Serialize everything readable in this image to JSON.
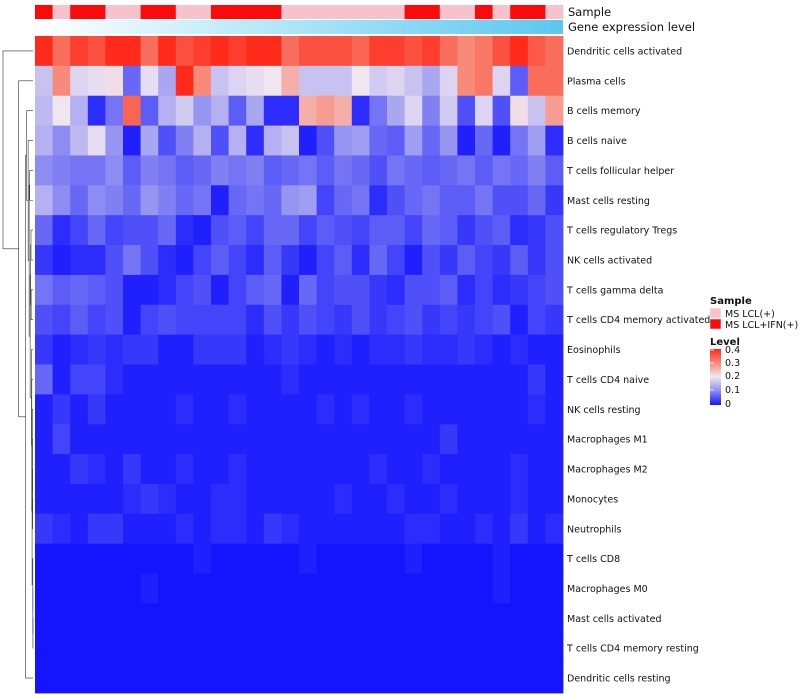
{
  "chart_data": {
    "type": "heatmap",
    "title": "",
    "annotations": [
      {
        "name": "Sample"
      },
      {
        "name": "Gene expression level"
      }
    ],
    "row_labels": [
      "Dendritic cells activated",
      "Plasma cells",
      "B cells memory",
      "B cells naive",
      "T cells follicular helper",
      "Mast cells resting",
      "T cells regulatory  Tregs",
      "NK cells activated",
      "T cells gamma delta",
      "T cells CD4 memory activated",
      "Eosinophils",
      "T cells CD4 naive",
      "NK cells resting",
      "Macrophages M1",
      "Macrophages M2",
      "Monocytes",
      "Neutrophils",
      "T cells CD8",
      "Macrophages M0",
      "Mast cells activated",
      "T cells CD4 memory resting",
      "Dendritic cells resting"
    ],
    "sample_groups": [
      1,
      0,
      1,
      1,
      0,
      0,
      1,
      1,
      0,
      0,
      1,
      1,
      1,
      1,
      0,
      0,
      0,
      0,
      0,
      0,
      0,
      1,
      1,
      0,
      0,
      1,
      0,
      1,
      1,
      0
    ],
    "expression_gradient": [
      "#ffffff",
      "#5bc8ef"
    ],
    "color_scale": {
      "breaks": [
        0,
        0.1,
        0.2,
        0.3,
        0.4
      ],
      "colors": [
        "#1414ff",
        "#8c8cf2",
        "#f0e6f0",
        "#f78a78",
        "#ff2a1a"
      ]
    },
    "values": [
      [
        0.4,
        0.33,
        0.38,
        0.36,
        0.4,
        0.4,
        0.33,
        0.4,
        0.36,
        0.38,
        0.4,
        0.38,
        0.4,
        0.4,
        0.33,
        0.36,
        0.36,
        0.36,
        0.34,
        0.38,
        0.38,
        0.36,
        0.38,
        0.33,
        0.3,
        0.32,
        0.36,
        0.4,
        0.35,
        0.33
      ],
      [
        0.16,
        0.3,
        0.18,
        0.19,
        0.21,
        0.07,
        0.19,
        0.13,
        0.4,
        0.3,
        0.16,
        0.18,
        0.19,
        0.2,
        0.26,
        0.16,
        0.16,
        0.16,
        0.2,
        0.17,
        0.18,
        0.16,
        0.13,
        0.18,
        0.3,
        0.32,
        0.18,
        0.06,
        0.33,
        0.33
      ],
      [
        0.15,
        0.2,
        0.14,
        0.02,
        0.08,
        0.34,
        0.06,
        0.14,
        0.17,
        0.11,
        0.14,
        0.06,
        0.13,
        0.02,
        0.02,
        0.26,
        0.28,
        0.26,
        0.02,
        0.08,
        0.13,
        0.18,
        0.09,
        0.17,
        0.05,
        0.18,
        0.05,
        0.21,
        0.16,
        0.28
      ],
      [
        0.14,
        0.1,
        0.15,
        0.19,
        0.11,
        0.01,
        0.13,
        0.05,
        0.09,
        0.14,
        0.05,
        0.14,
        0.02,
        0.14,
        0.16,
        0.01,
        0.05,
        0.11,
        0.12,
        0.07,
        0.06,
        0.12,
        0.07,
        0.11,
        0.01,
        0.07,
        0.01,
        0.08,
        0.12,
        0.02
      ],
      [
        0.1,
        0.09,
        0.08,
        0.08,
        0.1,
        0.06,
        0.09,
        0.08,
        0.06,
        0.07,
        0.09,
        0.08,
        0.09,
        0.06,
        0.07,
        0.08,
        0.06,
        0.08,
        0.07,
        0.05,
        0.08,
        0.07,
        0.06,
        0.07,
        0.08,
        0.06,
        0.08,
        0.07,
        0.09,
        0.06
      ],
      [
        0.14,
        0.1,
        0.07,
        0.1,
        0.09,
        0.07,
        0.11,
        0.09,
        0.07,
        0.08,
        0.01,
        0.07,
        0.08,
        0.07,
        0.11,
        0.12,
        0.04,
        0.07,
        0.08,
        0.02,
        0.05,
        0.07,
        0.08,
        0.06,
        0.06,
        0.08,
        0.05,
        0.05,
        0.07,
        0.03
      ],
      [
        0.07,
        0.02,
        0.04,
        0.07,
        0.04,
        0.05,
        0.05,
        0.07,
        0.02,
        0.01,
        0.05,
        0.06,
        0.04,
        0.07,
        0.07,
        0.04,
        0.06,
        0.05,
        0.04,
        0.06,
        0.06,
        0.04,
        0.07,
        0.06,
        0.03,
        0.05,
        0.06,
        0.02,
        0.03,
        0.05
      ],
      [
        0.03,
        0.01,
        0.02,
        0.02,
        0.05,
        0.08,
        0.05,
        0.02,
        0.01,
        0.04,
        0.06,
        0.04,
        0.02,
        0.06,
        0.03,
        0.01,
        0.04,
        0.06,
        0.02,
        0.07,
        0.04,
        0.01,
        0.05,
        0.03,
        0.06,
        0.04,
        0.03,
        0.06,
        0.03,
        0.05
      ],
      [
        0.08,
        0.06,
        0.07,
        0.06,
        0.05,
        0.01,
        0.01,
        0.02,
        0.04,
        0.05,
        0.01,
        0.04,
        0.06,
        0.07,
        0.01,
        0.07,
        0.04,
        0.05,
        0.05,
        0.03,
        0.02,
        0.05,
        0.05,
        0.06,
        0.02,
        0.04,
        0.02,
        0.03,
        0.04,
        0.05
      ],
      [
        0.05,
        0.04,
        0.06,
        0.04,
        0.05,
        0.01,
        0.04,
        0.05,
        0.04,
        0.04,
        0.04,
        0.04,
        0.02,
        0.05,
        0.03,
        0.05,
        0.04,
        0.03,
        0.05,
        0.03,
        0.04,
        0.05,
        0.03,
        0.04,
        0.03,
        0.04,
        0.05,
        0.01,
        0.04,
        0.03
      ],
      [
        0.03,
        0.01,
        0.02,
        0.03,
        0.02,
        0.03,
        0.03,
        0.01,
        0.01,
        0.03,
        0.03,
        0.03,
        0.01,
        0.02,
        0.03,
        0.02,
        0.01,
        0.02,
        0.01,
        0.02,
        0.02,
        0.03,
        0.02,
        0.02,
        0.03,
        0.02,
        0.01,
        0.02,
        0.01,
        0.01
      ],
      [
        0.07,
        0.01,
        0.04,
        0.04,
        0.02,
        0.01,
        0.01,
        0.01,
        0.01,
        0.01,
        0.01,
        0.01,
        0.01,
        0.01,
        0.02,
        0.01,
        0.01,
        0.01,
        0.01,
        0.01,
        0.01,
        0.01,
        0.01,
        0.01,
        0.01,
        0.01,
        0.01,
        0.01,
        0.03,
        0.01
      ],
      [
        0.01,
        0.03,
        0.01,
        0.03,
        0.01,
        0.01,
        0.01,
        0.01,
        0.02,
        0.01,
        0.01,
        0.02,
        0.01,
        0.01,
        0.01,
        0.01,
        0.02,
        0.01,
        0.02,
        0.01,
        0.01,
        0.02,
        0.01,
        0.01,
        0.01,
        0.01,
        0.01,
        0.01,
        0.02,
        0.01
      ],
      [
        0.01,
        0.04,
        0.01,
        0.01,
        0.01,
        0.01,
        0.01,
        0.01,
        0.01,
        0.01,
        0.01,
        0.01,
        0.01,
        0.01,
        0.01,
        0.01,
        0.01,
        0.01,
        0.01,
        0.01,
        0.01,
        0.01,
        0.01,
        0.03,
        0.01,
        0.01,
        0.01,
        0.01,
        0.01,
        0.01
      ],
      [
        0.01,
        0.01,
        0.03,
        0.02,
        0.01,
        0.03,
        0.01,
        0.01,
        0.02,
        0.01,
        0.01,
        0.02,
        0.01,
        0.01,
        0.01,
        0.01,
        0.01,
        0.01,
        0.01,
        0.02,
        0.01,
        0.01,
        0.02,
        0.01,
        0.01,
        0.01,
        0.01,
        0.02,
        0.01,
        0.01
      ],
      [
        0.01,
        0.01,
        0.01,
        0.01,
        0.01,
        0.02,
        0.03,
        0.02,
        0.01,
        0.01,
        0.02,
        0.02,
        0.01,
        0.01,
        0.01,
        0.01,
        0.01,
        0.02,
        0.01,
        0.01,
        0.02,
        0.01,
        0.01,
        0.02,
        0.01,
        0.01,
        0.01,
        0.02,
        0.01,
        0.01
      ],
      [
        0.03,
        0.02,
        0.01,
        0.03,
        0.03,
        0.01,
        0.01,
        0.01,
        0.02,
        0.01,
        0.02,
        0.02,
        0.01,
        0.03,
        0.02,
        0.01,
        0.01,
        0.01,
        0.01,
        0.01,
        0.01,
        0.02,
        0.02,
        0.01,
        0.01,
        0.02,
        0.01,
        0.03,
        0.01,
        0.02
      ],
      [
        0.0,
        0.0,
        0.0,
        0.0,
        0.0,
        0.0,
        0.0,
        0.0,
        0.0,
        0.01,
        0.0,
        0.0,
        0.0,
        0.0,
        0.0,
        0.01,
        0.0,
        0.0,
        0.0,
        0.0,
        0.0,
        0.01,
        0.0,
        0.0,
        0.0,
        0.0,
        0.01,
        0.0,
        0.0,
        0.0
      ],
      [
        0.0,
        0.0,
        0.0,
        0.0,
        0.0,
        0.0,
        0.01,
        0.0,
        0.0,
        0.0,
        0.0,
        0.0,
        0.0,
        0.0,
        0.0,
        0.0,
        0.0,
        0.0,
        0.0,
        0.0,
        0.0,
        0.0,
        0.0,
        0.0,
        0.0,
        0.0,
        0.01,
        0.0,
        0.0,
        0.0
      ],
      [
        0.0,
        0.0,
        0.0,
        0.0,
        0.0,
        0.0,
        0.0,
        0.0,
        0.0,
        0.0,
        0.0,
        0.0,
        0.0,
        0.0,
        0.0,
        0.0,
        0.0,
        0.0,
        0.0,
        0.0,
        0.0,
        0.0,
        0.0,
        0.0,
        0.0,
        0.0,
        0.0,
        0.0,
        0.0,
        0.0
      ],
      [
        0.0,
        0.0,
        0.0,
        0.0,
        0.0,
        0.0,
        0.0,
        0.0,
        0.0,
        0.0,
        0.0,
        0.0,
        0.0,
        0.0,
        0.0,
        0.0,
        0.0,
        0.0,
        0.0,
        0.0,
        0.0,
        0.0,
        0.0,
        0.0,
        0.0,
        0.0,
        0.0,
        0.0,
        0.0,
        0.0
      ],
      [
        0.0,
        0.0,
        0.0,
        0.0,
        0.0,
        0.0,
        0.0,
        0.0,
        0.0,
        0.0,
        0.0,
        0.0,
        0.0,
        0.0,
        0.0,
        0.0,
        0.0,
        0.0,
        0.0,
        0.0,
        0.0,
        0.0,
        0.0,
        0.0,
        0.0,
        0.0,
        0.0,
        0.0,
        0.0,
        0.0
      ]
    ],
    "legend": {
      "sample": {
        "title": "Sample",
        "entries": [
          {
            "label": "MS LCL(+)",
            "color": "#f6c3cd"
          },
          {
            "label": "MS LCL+IFN(+)",
            "color": "#fa0a0a"
          }
        ]
      },
      "level": {
        "title": "Level",
        "tick_labels": [
          "0.4",
          "0.3",
          "0.2",
          "0.1",
          "0"
        ]
      }
    },
    "dendrogram": {
      "merges": [
        [
          -20,
          -21
        ],
        [
          -19,
          1
        ],
        [
          -18,
          2
        ],
        [
          -17,
          -16
        ],
        [
          4,
          -15
        ],
        [
          -14,
          5
        ],
        [
          -13,
          6
        ],
        [
          3,
          7
        ],
        [
          -12,
          8
        ],
        [
          -11,
          9
        ],
        [
          -10,
          -9
        ],
        [
          -8,
          -7
        ],
        [
          11,
          12
        ],
        [
          10,
          13
        ],
        [
          -6,
          -5
        ],
        [
          15,
          14
        ],
        [
          -4,
          16
        ],
        [
          -3,
          17
        ],
        [
          -22,
          18
        ],
        [
          -2,
          19
        ],
        [
          -1,
          20
        ]
      ],
      "heights": [
        0.001,
        0.002,
        0.003,
        0.004,
        0.006,
        0.008,
        0.01,
        0.013,
        0.017,
        0.021,
        0.026,
        0.028,
        0.034,
        0.04,
        0.046,
        0.054,
        0.068,
        0.088,
        0.105,
        0.2,
        0.42
      ]
    }
  }
}
